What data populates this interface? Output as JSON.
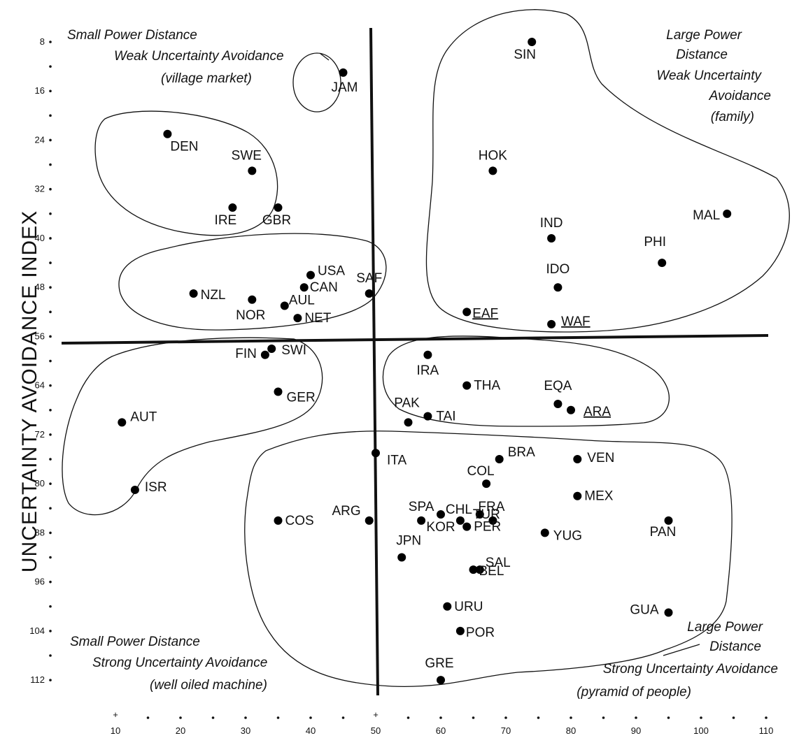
{
  "chart_data": {
    "type": "scatter",
    "title": "",
    "xlabel": "",
    "ylabel": "UNCERTAINTY AVOIDANCE INDEX",
    "xlim": [
      10,
      110
    ],
    "ylim": [
      8,
      112
    ],
    "x_tick_labels": [
      "10",
      "20",
      "30",
      "40",
      "50",
      "60",
      "70",
      "80",
      "90",
      "100",
      "110"
    ],
    "y_tick_labels": [
      "8",
      "16",
      "24",
      "32",
      "40",
      "48",
      "56",
      "64",
      "72",
      "80",
      "88",
      "96",
      "104",
      "112"
    ],
    "grid": false,
    "dividers": {
      "x": 50,
      "y": 56
    },
    "quadrant_labels": [
      {
        "lines": [
          "Small Power Distance",
          "Weak Uncertainty Avoidance",
          "(village market)"
        ]
      },
      {
        "lines": [
          "Large Power",
          "Distance",
          "Weak Uncertainty",
          "Avoidance",
          "(family)"
        ]
      },
      {
        "lines": [
          "Small Power Distance",
          "Strong Uncertainty Avoidance",
          "(well oiled machine)"
        ]
      },
      {
        "lines": [
          "Large Power",
          "Distance",
          "Strong Uncertainty Avoidance",
          "(pyramid of people)"
        ]
      }
    ],
    "points": [
      {
        "label": "SIN",
        "x": 74,
        "y": 8
      },
      {
        "label": "JAM",
        "x": 45,
        "y": 13
      },
      {
        "label": "DEN",
        "x": 18,
        "y": 23
      },
      {
        "label": "SWE",
        "x": 31,
        "y": 29
      },
      {
        "label": "IRE",
        "x": 28,
        "y": 35
      },
      {
        "label": "GBR",
        "x": 35,
        "y": 35
      },
      {
        "label": "HOK",
        "x": 68,
        "y": 29
      },
      {
        "label": "IND",
        "x": 77,
        "y": 40
      },
      {
        "label": "MAL",
        "x": 104,
        "y": 36
      },
      {
        "label": "PHI",
        "x": 94,
        "y": 44
      },
      {
        "label": "IDO",
        "x": 78,
        "y": 48
      },
      {
        "label": "USA",
        "x": 40,
        "y": 46
      },
      {
        "label": "CAN",
        "x": 39,
        "y": 48
      },
      {
        "label": "SAF",
        "x": 49,
        "y": 49
      },
      {
        "label": "NZL",
        "x": 22,
        "y": 49
      },
      {
        "label": "AUL",
        "x": 36,
        "y": 51
      },
      {
        "label": "NOR",
        "x": 31,
        "y": 50
      },
      {
        "label": "NET",
        "x": 38,
        "y": 53
      },
      {
        "label": "EAF",
        "x": 64,
        "y": 52,
        "underlined": true
      },
      {
        "label": "WAF",
        "x": 77,
        "y": 54,
        "underlined": true
      },
      {
        "label": "FIN",
        "x": 33,
        "y": 59
      },
      {
        "label": "SWI",
        "x": 34,
        "y": 58
      },
      {
        "label": "GER",
        "x": 35,
        "y": 65
      },
      {
        "label": "AUT",
        "x": 11,
        "y": 70
      },
      {
        "label": "IRA",
        "x": 58,
        "y": 59
      },
      {
        "label": "THA",
        "x": 64,
        "y": 64
      },
      {
        "label": "PAK",
        "x": 55,
        "y": 70
      },
      {
        "label": "TAI",
        "x": 58,
        "y": 69
      },
      {
        "label": "EQA",
        "x": 78,
        "y": 67
      },
      {
        "label": "ARA",
        "x": 80,
        "y": 68,
        "underlined": true
      },
      {
        "label": "ISR",
        "x": 13,
        "y": 81
      },
      {
        "label": "ITA",
        "x": 50,
        "y": 75
      },
      {
        "label": "BRA",
        "x": 69,
        "y": 76
      },
      {
        "label": "VEN",
        "x": 81,
        "y": 76
      },
      {
        "label": "COL",
        "x": 67,
        "y": 80
      },
      {
        "label": "MEX",
        "x": 81,
        "y": 82
      },
      {
        "label": "ARG",
        "x": 49,
        "y": 86
      },
      {
        "label": "SPA",
        "x": 57,
        "y": 86
      },
      {
        "label": "CHL",
        "x": 63,
        "y": 86
      },
      {
        "label": "TUR",
        "x": 66,
        "y": 85
      },
      {
        "label": "KOR",
        "x": 60,
        "y": 85
      },
      {
        "label": "COS",
        "x": 35,
        "y": 86
      },
      {
        "label": "FRA",
        "x": 68,
        "y": 86
      },
      {
        "label": "PER",
        "x": 64,
        "y": 87
      },
      {
        "label": "YUG",
        "x": 76,
        "y": 88
      },
      {
        "label": "PAN",
        "x": 95,
        "y": 86
      },
      {
        "label": "JPN",
        "x": 54,
        "y": 92
      },
      {
        "label": "SAL",
        "x": 66,
        "y": 94
      },
      {
        "label": "BEL",
        "x": 65,
        "y": 94
      },
      {
        "label": "URU",
        "x": 61,
        "y": 100
      },
      {
        "label": "GUA",
        "x": 95,
        "y": 101
      },
      {
        "label": "POR",
        "x": 63,
        "y": 104
      },
      {
        "label": "GRE",
        "x": 60,
        "y": 112
      }
    ]
  }
}
